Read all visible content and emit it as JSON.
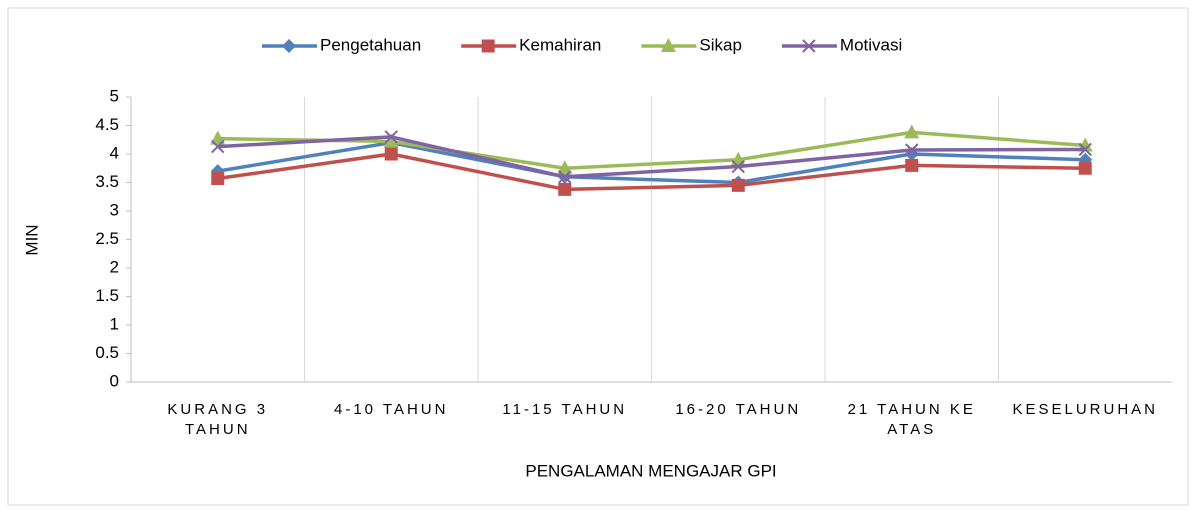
{
  "chart_data": {
    "type": "line",
    "x_label": "PENGALAMAN MENGAJAR GPI",
    "y_label": "MIN",
    "categories": [
      "KURANG 3 TAHUN",
      "4-10 TAHUN",
      "11-15 TAHUN",
      "16-20 TAHUN",
      "21 TAHUN KE ATAS",
      "KESELURUHAN"
    ],
    "series": [
      {
        "name": "Pengetahuan",
        "color": "#4f81bd",
        "marker": "diamond",
        "values": [
          3.7,
          4.2,
          3.6,
          3.5,
          4.0,
          3.9
        ]
      },
      {
        "name": "Kemahiran",
        "color": "#c0504d",
        "marker": "square",
        "values": [
          3.57,
          4.0,
          3.38,
          3.45,
          3.8,
          3.75
        ]
      },
      {
        "name": "Sikap",
        "color": "#9bbb59",
        "marker": "triangle",
        "values": [
          4.27,
          4.22,
          3.75,
          3.9,
          4.38,
          4.15
        ]
      },
      {
        "name": "Motivasi",
        "color": "#8064a2",
        "marker": "x",
        "values": [
          4.13,
          4.3,
          3.6,
          3.78,
          4.07,
          4.08
        ]
      }
    ],
    "ylim": [
      0,
      5
    ],
    "yticks": [
      0,
      0.5,
      1,
      1.5,
      2,
      2.5,
      3,
      3.5,
      4,
      4.5,
      5
    ],
    "grid": "vertical",
    "legend": "top"
  }
}
